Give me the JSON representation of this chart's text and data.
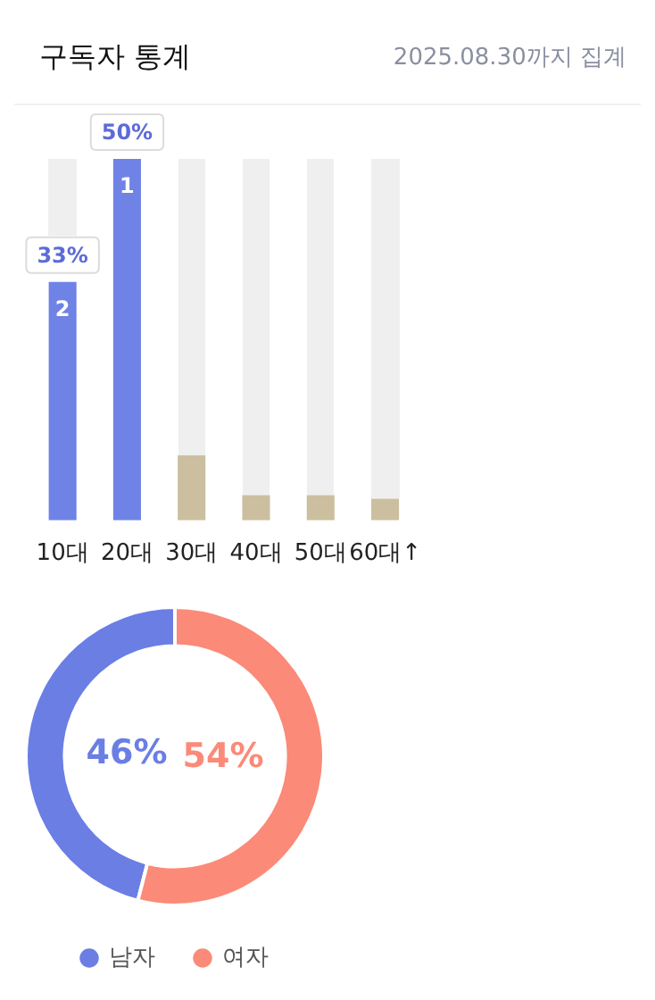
{
  "chart_data": [
    {
      "type": "bar",
      "title": "구독자 통계",
      "subtitle": "2025.08.30까지 집계",
      "categories": [
        "10대",
        "20대",
        "30대",
        "40대",
        "50대",
        "60대↑"
      ],
      "values": [
        33,
        50,
        9,
        3.5,
        3.5,
        3
      ],
      "tick_labels": "x",
      "colors": [
        "#6f83e6",
        "#6f83e6",
        "#cbbf9f",
        "#cbbf9f",
        "#cbbf9f",
        "#cbbf9f"
      ],
      "value_labels": [
        "33%",
        "50%",
        null,
        null,
        null,
        null
      ],
      "annotations": [
        {
          "text": "2",
          "x": "10대",
          "y": 33
        },
        {
          "text": "1",
          "x": "20대",
          "y": 50
        }
      ]
    },
    {
      "type": "donut",
      "categories": [
        "남자",
        "여자"
      ],
      "values": [
        46,
        54
      ],
      "colors": [
        "#6a7ee4",
        "#fb8a78"
      ],
      "value_labels": [
        "46%",
        "54%"
      ],
      "legend": "bottom"
    }
  ]
}
